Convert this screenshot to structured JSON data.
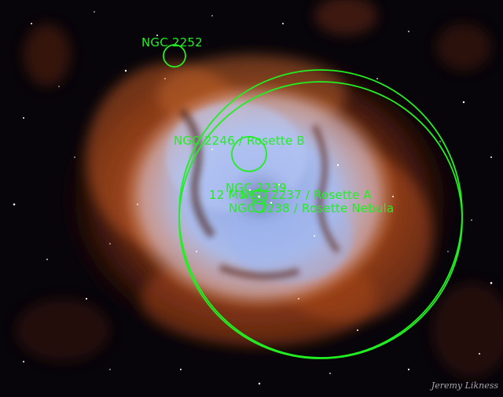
{
  "annotations": [
    {
      "id": "ngc2252",
      "label": "NGC 2252"
    },
    {
      "id": "ngc2246",
      "label": "NGC 2246 / Rosette B"
    },
    {
      "id": "ngc2239",
      "label": "NGC 2239"
    },
    {
      "id": "ngc2237",
      "label": "NGC 2237 / Rosette A"
    },
    {
      "id": "ngc2238",
      "label": "NGC 2238 / Rosette Nebula"
    },
    {
      "id": "12mon",
      "label": "12 Mon"
    }
  ],
  "credit": "Jeremy Likness",
  "colors": {
    "annotation": "#22ee22",
    "nebula_outer": "#c8501e",
    "nebula_inner": "#a8bff0"
  }
}
